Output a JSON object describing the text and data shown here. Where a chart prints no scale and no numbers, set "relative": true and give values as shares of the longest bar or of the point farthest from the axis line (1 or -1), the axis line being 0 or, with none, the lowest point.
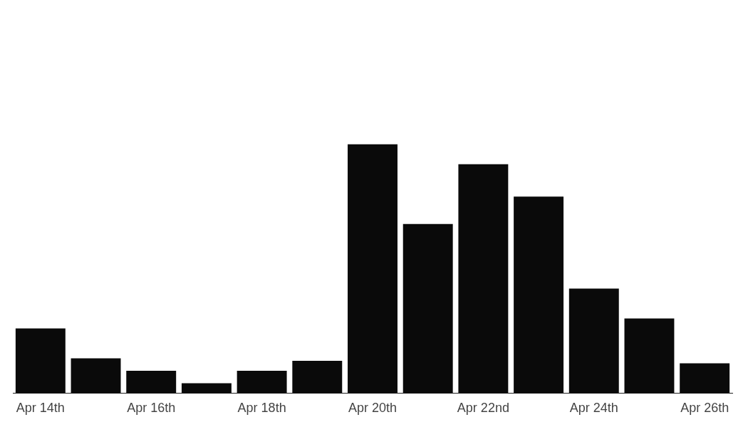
{
  "chart_data": {
    "type": "bar",
    "relative": true,
    "color": "#0a0a0a",
    "categories": [
      "Apr 14th",
      null,
      "Apr 16th",
      null,
      "Apr 18th",
      null,
      "Apr 20th",
      null,
      "Apr 22nd",
      null,
      "Apr 24th",
      null,
      "Apr 26th"
    ],
    "values": [
      0.26,
      0.14,
      0.09,
      0.04,
      0.09,
      0.13,
      1,
      0.68,
      0.92,
      0.79,
      0.42,
      0.3,
      0.12
    ]
  }
}
